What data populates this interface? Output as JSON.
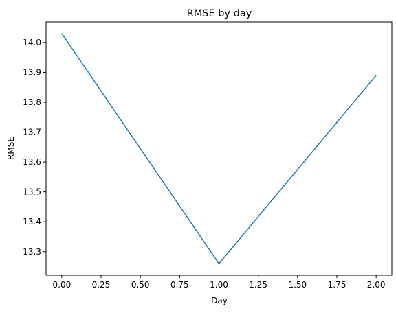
{
  "chart_data": {
    "type": "line",
    "title": "RMSE by day",
    "xlabel": "Day",
    "ylabel": "RMSE",
    "x": [
      0,
      1,
      2
    ],
    "series": [
      {
        "values": [
          14.03,
          13.26,
          13.89
        ],
        "color": "#1f77b4"
      }
    ],
    "xlim": [
      -0.1,
      2.1
    ],
    "ylim": [
      13.2215,
      14.0685
    ],
    "xticks": [
      "0.00",
      "0.25",
      "0.50",
      "0.75",
      "1.00",
      "1.25",
      "1.50",
      "1.75",
      "2.00"
    ],
    "yticks": [
      "13.3",
      "13.4",
      "13.5",
      "13.6",
      "13.7",
      "13.8",
      "13.9",
      "14.0"
    ],
    "grid": false,
    "legend": false
  }
}
